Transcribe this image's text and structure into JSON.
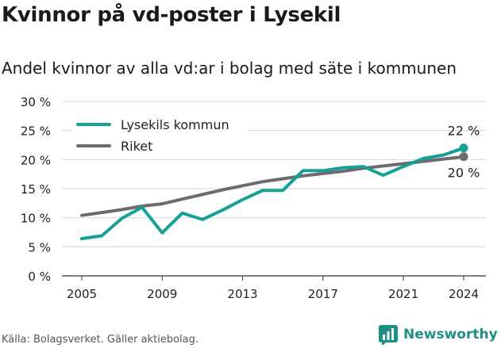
{
  "title": "Kvinnor på vd-poster i Lysekil",
  "subtitle": "Andel kvinnor av alla vd:ar i bolag med säte i kommunen",
  "source": "Källa: Bolagsverket. Gäller aktiebolag.",
  "brand": "Newsworthy",
  "colors": {
    "lysekil": "#16a096",
    "riket": "#6b6b70",
    "brand": "#1f8f86"
  },
  "chart_data": {
    "type": "line",
    "title": "Kvinnor på vd-poster i Lysekil",
    "subtitle": "Andel kvinnor av alla vd:ar i bolag med säte i kommunen",
    "x": [
      2005,
      2006,
      2007,
      2008,
      2009,
      2010,
      2011,
      2012,
      2013,
      2014,
      2015,
      2016,
      2017,
      2018,
      2019,
      2020,
      2021,
      2022,
      2023,
      2024
    ],
    "xticks": [
      "2005",
      "2009",
      "2013",
      "2017",
      "2021",
      "2024"
    ],
    "yticks": [
      "0 %",
      "5 %",
      "10 %",
      "15 %",
      "20 %",
      "25 %",
      "30 %"
    ],
    "ylim": [
      0,
      30
    ],
    "grid": true,
    "legend_position": "top-left",
    "series": [
      {
        "name": "Lysekils kommun",
        "color": "#16a096",
        "values": [
          6.4,
          6.9,
          9.9,
          11.8,
          7.4,
          10.8,
          9.7,
          11.3,
          13.1,
          14.7,
          14.7,
          18.1,
          18.1,
          18.6,
          18.8,
          17.3,
          18.8,
          20.2,
          20.8,
          22.0
        ],
        "end_label": "22 %"
      },
      {
        "name": "Riket",
        "color": "#6b6b70",
        "values": [
          10.4,
          10.9,
          11.4,
          12.0,
          12.4,
          13.2,
          14.0,
          14.8,
          15.5,
          16.2,
          16.7,
          17.2,
          17.6,
          18.0,
          18.5,
          18.9,
          19.3,
          19.7,
          20.1,
          20.5
        ],
        "end_label": "20 %"
      }
    ]
  }
}
